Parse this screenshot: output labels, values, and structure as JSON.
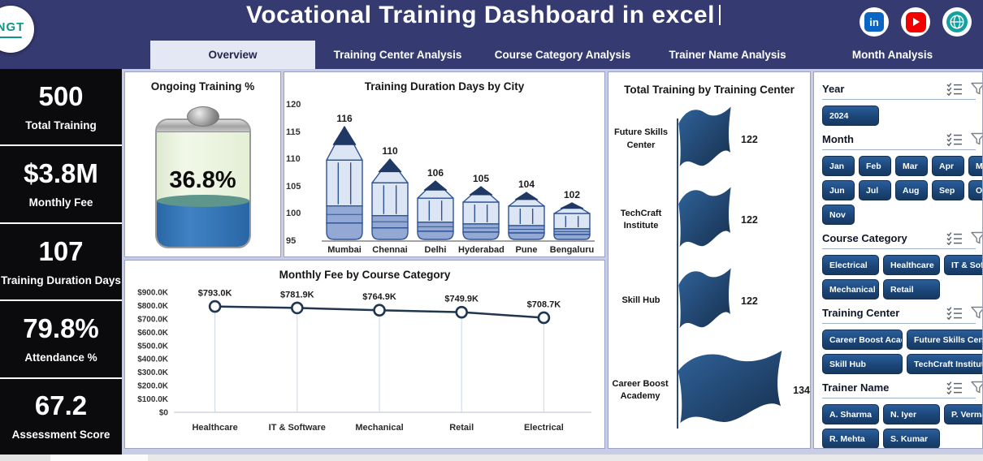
{
  "colors": {
    "header_bg": "#353a70",
    "sidebar_bg": "#0b0b0e",
    "canvas_bg": "#c9cde4",
    "panel_border": "#99a1c6",
    "slicer_button_blue": "#1d4d85",
    "chart_navy": "#1f3864",
    "pencil_body": "#dbe5f3",
    "pencil_stroke": "#2f5496",
    "pencil_band": "#93a9d4",
    "battery_fill_blue": "#2e74b5",
    "linkedin_blue": "#0a66c2",
    "youtube_red": "#f20000",
    "globe_teal": "#12a0a0"
  },
  "header": {
    "title": "Vocational Training Dashboard in excel",
    "logo_text": "NGT",
    "social_icons": [
      "linkedin-icon",
      "youtube-icon",
      "globe-icon"
    ]
  },
  "tabs": [
    {
      "label": "Overview",
      "active": true
    },
    {
      "label": "Training Center Analysis",
      "active": false
    },
    {
      "label": "Course Category Analysis",
      "active": false
    },
    {
      "label": "Trainer Name Analysis",
      "active": false
    },
    {
      "label": "Month Analysis",
      "active": false
    }
  ],
  "kpis": [
    {
      "value": "500",
      "label": "Total Training"
    },
    {
      "value": "$3.8M",
      "label": "Monthly Fee"
    },
    {
      "value": "107",
      "label": "Training Duration Days"
    },
    {
      "value": "79.8%",
      "label": "Attendance %"
    },
    {
      "value": "67.2",
      "label": "Assessment Score"
    }
  ],
  "chart_data": [
    {
      "type": "gauge",
      "variant": "battery",
      "title": "Ongoing Training %",
      "value_pct": 36.8,
      "value_label": "36.8%"
    },
    {
      "type": "bar",
      "variant": "pencil",
      "title": "Training Duration Days by City",
      "categories": [
        "Mumbai",
        "Chennai",
        "Delhi",
        "Hyderabad",
        "Pune",
        "Bengaluru"
      ],
      "values": [
        116,
        110,
        106,
        105,
        104,
        102
      ],
      "ylim": [
        95,
        120
      ],
      "yticks": [
        120,
        115,
        110,
        105,
        100,
        95
      ],
      "grid": false
    },
    {
      "type": "bar",
      "variant": "flag",
      "orientation": "horizontal",
      "title": "Total Training by Training Center",
      "categories": [
        "Future Skills Center",
        "TechCraft Institute",
        "Skill Hub",
        "Career Boost Academy"
      ],
      "values": [
        122,
        122,
        122,
        134
      ]
    },
    {
      "type": "line",
      "title": "Monthly Fee by Course Category",
      "categories": [
        "Healthcare",
        "IT & Software",
        "Mechanical",
        "Retail",
        "Electrical"
      ],
      "values": [
        793.0,
        781.9,
        764.9,
        749.9,
        708.7
      ],
      "unit": "K USD",
      "value_labels": [
        "$793.0K",
        "$781.9K",
        "$764.9K",
        "$749.9K",
        "$708.7K"
      ],
      "ylim": [
        0,
        900
      ],
      "ytick_labels": [
        "$0",
        "$100.0K",
        "$200.0K",
        "$300.0K",
        "$400.0K",
        "$500.0K",
        "$600.0K",
        "$700.0K",
        "$800.0K",
        "$900.0K"
      ],
      "grid": false
    }
  ],
  "slicers": {
    "header_icons": [
      "multiselect-icon",
      "filter-icon"
    ],
    "groups": [
      {
        "title": "Year",
        "columns": 1,
        "items": [
          "2024"
        ]
      },
      {
        "title": "Month",
        "columns": 5,
        "items": [
          "Jan",
          "Feb",
          "Mar",
          "Apr",
          "May",
          "Jun",
          "Jul",
          "Aug",
          "Sep",
          "Oct",
          "Nov"
        ]
      },
      {
        "title": "Course Category",
        "columns": 3,
        "items": [
          "Electrical",
          "Healthcare",
          "IT & Softwa...",
          "Mechanical",
          "Retail"
        ]
      },
      {
        "title": "Training Center",
        "columns": 2,
        "items": [
          "Career Boost Acade...",
          "Future Skills Center",
          "Skill Hub",
          "TechCraft Institute"
        ]
      },
      {
        "title": "Trainer Name",
        "columns": 3,
        "items": [
          "A. Sharma",
          "N. Iyer",
          "P. Verma",
          "R. Mehta",
          "S. Kumar"
        ]
      }
    ]
  }
}
